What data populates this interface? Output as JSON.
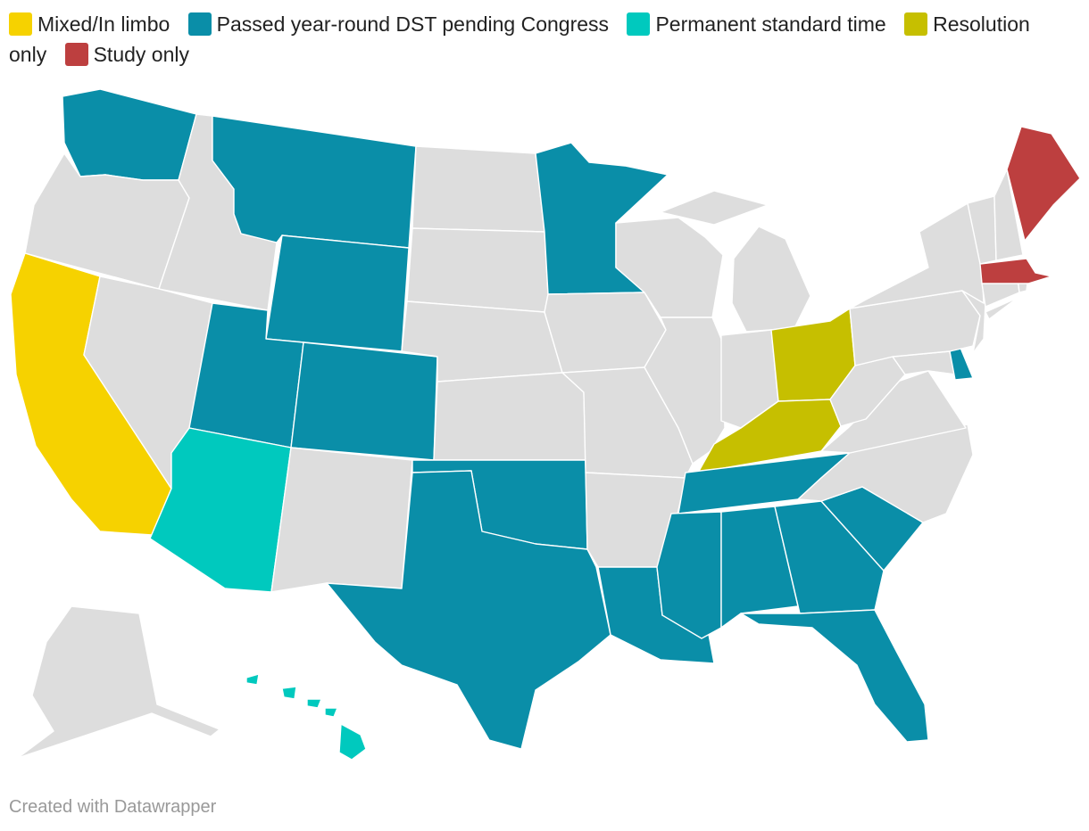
{
  "legend": [
    {
      "label": "Mixed/In limbo",
      "color": "#f6d200"
    },
    {
      "label": "Passed year-round DST pending Congress",
      "color": "#0a8ea8"
    },
    {
      "label": "Permanent standard time",
      "color": "#00c9be"
    },
    {
      "label": "Resolution only",
      "color": "#c6bf00"
    },
    {
      "label": "Study only",
      "color": "#bd3f3f"
    }
  ],
  "no_data_color": "#dddddd",
  "states": {
    "WA": "dst",
    "OR": "none",
    "CA": "mixed",
    "ID": "none",
    "NV": "none",
    "MT": "dst",
    "WY": "dst",
    "UT": "dst",
    "AZ": "standard",
    "CO": "dst",
    "NM": "none",
    "ND": "none",
    "SD": "none",
    "NE": "none",
    "KS": "none",
    "OK": "dst",
    "TX": "dst",
    "MN": "dst",
    "IA": "none",
    "MO": "none",
    "AR": "none",
    "LA": "dst",
    "WI": "none",
    "IL": "none",
    "MI": "none",
    "IN": "none",
    "OH": "resolution",
    "KY": "resolution",
    "TN": "dst",
    "MS": "dst",
    "AL": "dst",
    "GA": "dst",
    "FL": "dst",
    "SC": "dst",
    "NC": "none",
    "VA": "none",
    "WV": "none",
    "MD": "none",
    "DE": "dst",
    "PA": "none",
    "NJ": "none",
    "NY": "none",
    "CT": "none",
    "RI": "none",
    "MA": "study",
    "VT": "none",
    "NH": "none",
    "ME": "study",
    "AK": "none",
    "HI": "standard"
  },
  "credit": "Created with Datawrapper"
}
